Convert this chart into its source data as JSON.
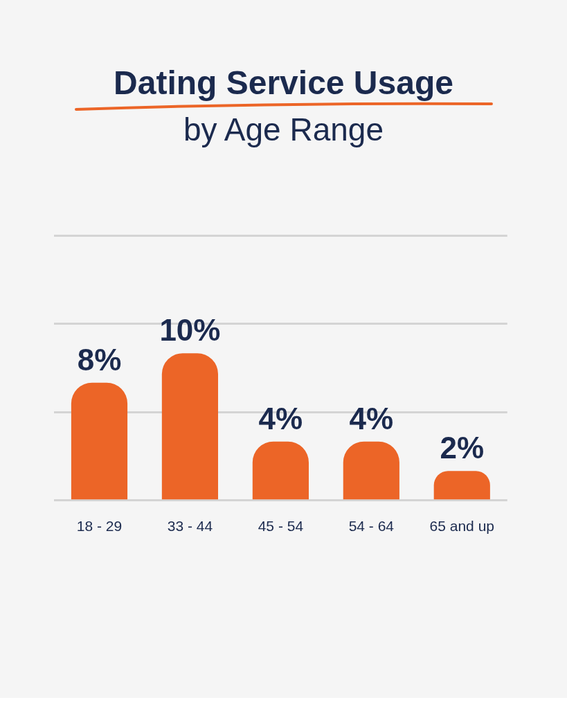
{
  "chart_data": {
    "type": "bar",
    "title": "Dating Service Usage",
    "subtitle": "by Age Range",
    "categories": [
      "18 - 29",
      "33 - 44",
      "45 - 54",
      "54 - 64",
      "65 and up"
    ],
    "values": [
      8,
      10,
      4,
      4,
      2
    ],
    "value_labels": [
      "8%",
      "10%",
      "4%",
      "4%",
      "2%"
    ],
    "color": "#ec6527",
    "ylim": [
      0,
      18
    ],
    "yticks": [
      {
        "value": 0,
        "label": null
      },
      {
        "value": 6,
        "label": null
      },
      {
        "value": 12,
        "label": null
      },
      {
        "value": 18,
        "label": null
      }
    ],
    "grid": "y",
    "legend": false
  }
}
